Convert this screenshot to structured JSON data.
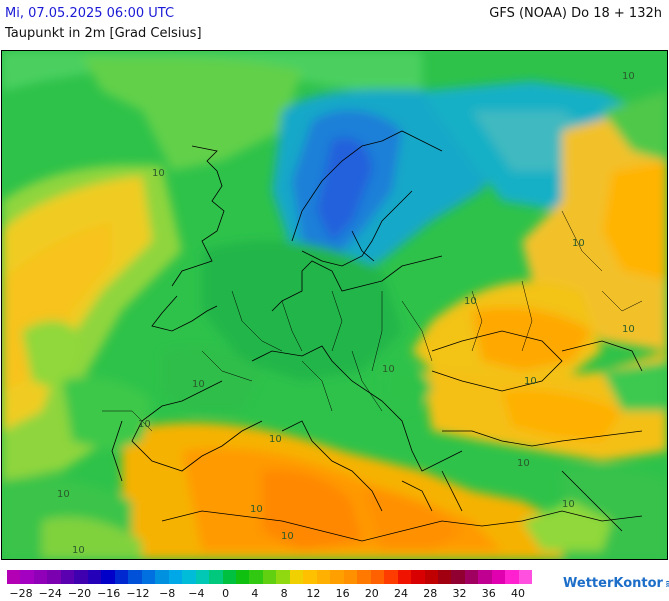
{
  "header": {
    "datetime": "Mi, 07.05.2025 06:00 UTC",
    "variable": "Taupunkt in 2m [Grad Celsius]",
    "model_run": "GFS (NOAA) Do 18 + 132h"
  },
  "map": {
    "contour_label": "10"
  },
  "legend": {
    "colors": [
      "#b400b4",
      "#a300c2",
      "#9000b8",
      "#7a00b0",
      "#5a00b0",
      "#3f00b0",
      "#2400b8",
      "#0000c8",
      "#0028d0",
      "#0050d8",
      "#0070e0",
      "#0090e0",
      "#00a8e8",
      "#00bcd8",
      "#00c8b4",
      "#00c87c",
      "#00c040",
      "#10c010",
      "#30c810",
      "#60d010",
      "#90d810",
      "#f0d000",
      "#ffc000",
      "#ffb000",
      "#ffa000",
      "#ff9000",
      "#ff7800",
      "#ff6000",
      "#ff3c00",
      "#f01400",
      "#d80000",
      "#c00000",
      "#a00010",
      "#900030",
      "#a00060",
      "#c00090",
      "#e000b0",
      "#ff20d0",
      "#ff50e0"
    ],
    "ticks": [
      "−28",
      "−24",
      "−20",
      "−16",
      "−12",
      "−8",
      "−4",
      "0",
      "4",
      "8",
      "12",
      "16",
      "20",
      "24",
      "28",
      "32",
      "36",
      "40"
    ]
  },
  "brand": {
    "name": "WetterKontor"
  }
}
